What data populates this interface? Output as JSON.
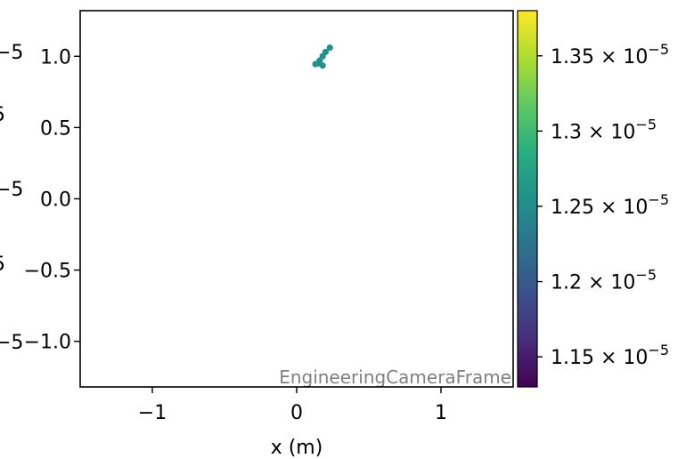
{
  "chart_data": {
    "type": "scatter",
    "title": "",
    "xlabel": "x  (m)",
    "ylabel": "",
    "xlim": [
      -1.5,
      1.5
    ],
    "ylim": [
      -1.32,
      1.32
    ],
    "x_ticks": [
      {
        "value": -1,
        "label": "−1"
      },
      {
        "value": 0,
        "label": "0"
      },
      {
        "value": 1,
        "label": "1"
      }
    ],
    "y_ticks": [
      {
        "value": 1.0,
        "label": "1.0"
      },
      {
        "value": 0.5,
        "label": "0.5"
      },
      {
        "value": 0.0,
        "label": "0.0"
      },
      {
        "value": -0.5,
        "label": "−0.5"
      },
      {
        "value": -1.0,
        "label": "−1.0"
      }
    ],
    "grid": false,
    "annotation": "EngineeringCameraFrame",
    "points": [
      {
        "x": 0.13,
        "y": 0.945
      },
      {
        "x": 0.16,
        "y": 0.97
      },
      {
        "x": 0.18,
        "y": 1.0
      },
      {
        "x": 0.2,
        "y": 1.03
      },
      {
        "x": 0.23,
        "y": 1.06
      },
      {
        "x": 0.18,
        "y": 0.935
      },
      {
        "x": 0.15,
        "y": 0.95
      }
    ],
    "point_color": "#21918c",
    "colorbar": {
      "colormap": "viridis",
      "vmin": 1.13e-05,
      "vmax": 1.38e-05,
      "ticks": [
        {
          "value": 1.15e-05,
          "mantissa": "1.15"
        },
        {
          "value": 1.2e-05,
          "mantissa": "1.2"
        },
        {
          "value": 1.25e-05,
          "mantissa": "1.25"
        },
        {
          "value": 1.3e-05,
          "mantissa": "1.3"
        },
        {
          "value": 1.35e-05,
          "mantissa": "1.35"
        }
      ],
      "multiplier": "× 10",
      "exponent": "−5"
    }
  }
}
